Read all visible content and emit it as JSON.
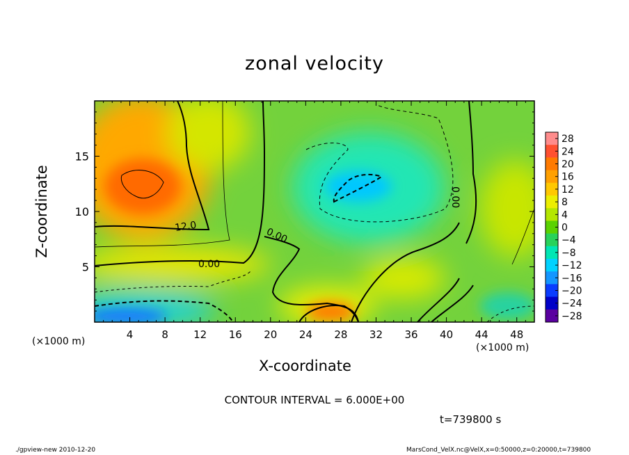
{
  "chart_data": {
    "type": "heatmap",
    "title": "zonal velocity",
    "xlabel": "X-coordinate",
    "ylabel": "Z-coordinate",
    "x_unit": "(×1000 m)",
    "y_unit": "(×1000 m)",
    "xlim": [
      0,
      50
    ],
    "ylim": [
      0,
      20
    ],
    "x_ticks": [
      "4",
      "8",
      "12",
      "16",
      "20",
      "24",
      "28",
      "32",
      "36",
      "40",
      "44",
      "48"
    ],
    "y_ticks": [
      "5",
      "10",
      "15"
    ],
    "colorbar": {
      "labels": [
        "28",
        "24",
        "20",
        "16",
        "12",
        "8",
        "4",
        "0",
        "−4",
        "−8",
        "−12",
        "−16",
        "−20",
        "−24",
        "−28"
      ],
      "colors": [
        "#ff8c8c",
        "#ff5030",
        "#ff7a00",
        "#ffa000",
        "#ffc800",
        "#ecee00",
        "#b4e600",
        "#5ad200",
        "#28d25a",
        "#00e6b4",
        "#00d2ff",
        "#1496ff",
        "#0a3cff",
        "#0000c8",
        "#5a00a0"
      ]
    },
    "contour_labels": [
      "12.0",
      "0.00",
      "0.00",
      "0.00"
    ],
    "features": [
      {
        "x": 5,
        "z": 12,
        "u": 20
      },
      {
        "x": 29,
        "z": 12.5,
        "u": -12
      },
      {
        "x": 28,
        "z": 0.6,
        "u": 18
      },
      {
        "x": 6,
        "z": 0.4,
        "u": -16
      }
    ],
    "contour_interval": "CONTOUR INTERVAL = 6.000E+00",
    "time": "t=739800 s"
  },
  "footer": {
    "left": "./gpview-new  2010-12-20",
    "right": "MarsCond_VelX.nc@VelX,x=0:50000,z=0:20000,t=739800"
  }
}
